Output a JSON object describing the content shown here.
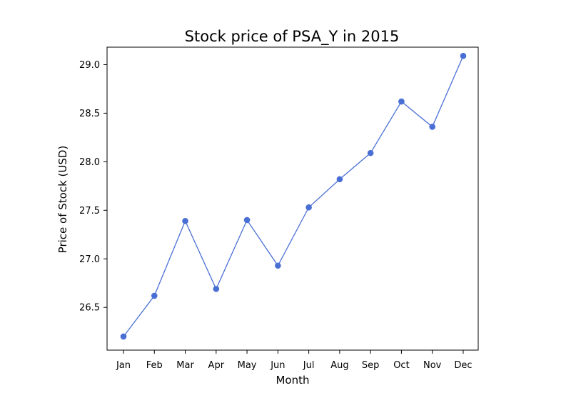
{
  "chart_data": {
    "type": "line",
    "title": "Stock price of PSA_Y in 2015",
    "xlabel": "Month",
    "ylabel": "Price of Stock (USD)",
    "categories": [
      "Jan",
      "Feb",
      "Mar",
      "Apr",
      "May",
      "Jun",
      "Jul",
      "Aug",
      "Sep",
      "Oct",
      "Nov",
      "Dec"
    ],
    "series": [
      {
        "values": [
          26.2,
          26.62,
          27.39,
          26.69,
          27.4,
          26.93,
          27.53,
          27.82,
          28.09,
          28.62,
          28.36,
          29.09
        ],
        "color": "#4a6fd4"
      }
    ],
    "yticks": [
      "26.5",
      "27.0",
      "27.5",
      "28.0",
      "28.5",
      "29.0"
    ],
    "ylim": [
      26.06,
      29.18
    ],
    "grid": false,
    "legend": "none"
  }
}
